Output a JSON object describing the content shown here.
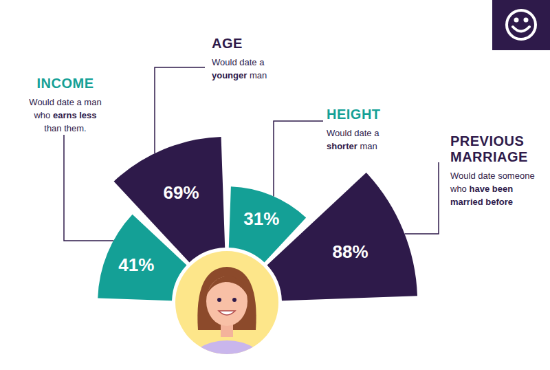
{
  "chart_data": {
    "type": "polar_area",
    "categories": [
      "INCOME",
      "AGE",
      "HEIGHT",
      "PREVIOUS MARRIAGE"
    ],
    "values": [
      41,
      69,
      31,
      88
    ],
    "value_labels": [
      "41%",
      "69%",
      "31%",
      "88%"
    ],
    "data_labels": true,
    "colors": [
      "#14a096",
      "#2e1a4a",
      "#14a096",
      "#2e1a4a"
    ],
    "descriptions": [
      {
        "before": "Would date a man who",
        "emphasis": "earns less",
        "after": "than them."
      },
      {
        "before": "Would date a",
        "emphasis": "younger",
        "after": "man"
      },
      {
        "before": "Would date a",
        "emphasis": "shorter",
        "after": "man"
      },
      {
        "before": "Would date someone who",
        "emphasis": "have been married before"
      }
    ]
  }
}
